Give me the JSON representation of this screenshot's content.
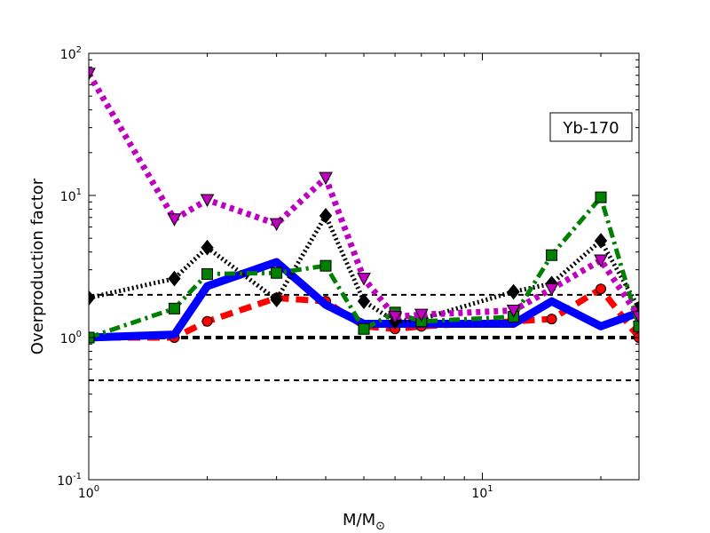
{
  "chart_data": {
    "type": "line",
    "annotation": "Yb-170",
    "xlabel": "M/M",
    "xlabel_sub": "⊙",
    "ylabel": "Overproduction factor",
    "xscale": "log",
    "yscale": "log",
    "xlim": [
      1,
      25
    ],
    "ylim": [
      0.1,
      100
    ],
    "x_ticks": [
      {
        "value": 1,
        "base": "10",
        "exp": "0"
      },
      {
        "value": 10,
        "base": "10",
        "exp": "1"
      }
    ],
    "y_ticks": [
      {
        "value": 0.1,
        "base": "10",
        "exp": "-1"
      },
      {
        "value": 1,
        "base": "10",
        "exp": "0"
      },
      {
        "value": 10,
        "base": "10",
        "exp": "1"
      },
      {
        "value": 100,
        "base": "10",
        "exp": "2"
      }
    ],
    "reference_lines": [
      {
        "y": 0.5,
        "style": "thin-dashed"
      },
      {
        "y": 1,
        "style": "thick-dashed"
      },
      {
        "y": 2,
        "style": "thin-dashed"
      }
    ],
    "series": [
      {
        "color": "#ff0000",
        "marker": "circle",
        "dash": "dashed",
        "x": [
          1,
          1.65,
          2,
          3,
          4,
          5,
          6,
          7,
          12,
          15,
          20,
          25
        ],
        "y": [
          1.0,
          1.0,
          1.3,
          1.9,
          1.8,
          1.2,
          1.15,
          1.2,
          1.3,
          1.35,
          2.2,
          1.0
        ]
      },
      {
        "color": "#0000ff",
        "marker": "none",
        "dash": "solid",
        "x": [
          1,
          1.65,
          2,
          3,
          4,
          5,
          6,
          7,
          12,
          15,
          20,
          25
        ],
        "y": [
          1.0,
          1.05,
          2.3,
          3.4,
          1.7,
          1.25,
          1.25,
          1.25,
          1.25,
          1.8,
          1.2,
          1.5
        ]
      },
      {
        "color": "#000000",
        "marker": "diamond",
        "dash": "dotted",
        "x": [
          1,
          1.65,
          2,
          3,
          4,
          5,
          6,
          7,
          12,
          15,
          20,
          25
        ],
        "y": [
          1.9,
          2.6,
          4.3,
          1.85,
          7.2,
          1.8,
          1.3,
          1.35,
          2.1,
          2.4,
          4.8,
          1.6
        ]
      },
      {
        "color": "#008000",
        "marker": "square",
        "dash": "dashdot",
        "x": [
          1,
          1.65,
          2,
          3,
          4,
          5,
          6,
          7,
          12,
          15,
          20,
          25
        ],
        "y": [
          1.0,
          1.6,
          2.8,
          2.85,
          3.2,
          1.15,
          1.5,
          1.3,
          1.4,
          3.8,
          9.7,
          1.2
        ]
      },
      {
        "color": "#bf00bf",
        "marker": "triangle-down",
        "dash": "dotted-heavy",
        "x": [
          1,
          1.65,
          2,
          3,
          4,
          5,
          6,
          7,
          12,
          15,
          20,
          25
        ],
        "y": [
          72,
          6.8,
          9.3,
          6.3,
          13.3,
          2.6,
          1.4,
          1.45,
          1.55,
          2.2,
          3.5,
          1.4
        ]
      }
    ]
  }
}
